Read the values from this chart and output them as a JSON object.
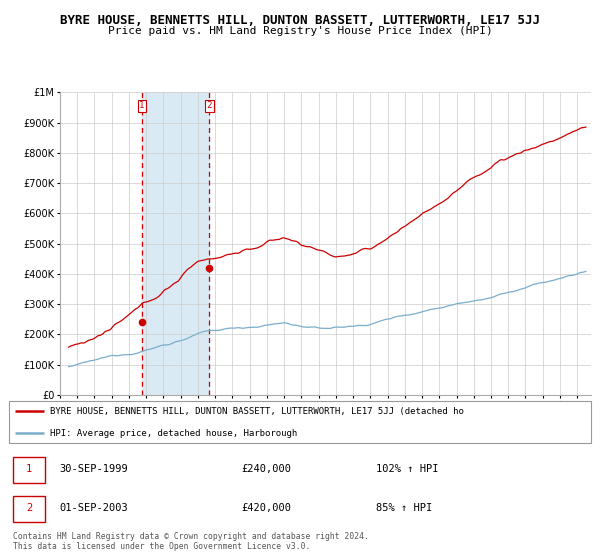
{
  "title": "BYRE HOUSE, BENNETTS HILL, DUNTON BASSETT, LUTTERWORTH, LE17 5JJ",
  "subtitle": "Price paid vs. HM Land Registry's House Price Index (HPI)",
  "hpi_label": "HPI: Average price, detached house, Harborough",
  "property_label": "BYRE HOUSE, BENNETTS HILL, DUNTON BASSETT, LUTTERWORTH, LE17 5JJ (detached ho",
  "sale1_date": "30-SEP-1999",
  "sale1_price": 240000,
  "sale1_hpi": "102%",
  "sale2_date": "01-SEP-2003",
  "sale2_price": 420000,
  "sale2_hpi": "85%",
  "red_color": "#cc0000",
  "blue_color": "#7aadcc",
  "shading_color": "#daeaf5",
  "grid_color": "#cccccc",
  "background_color": "#ffffff",
  "title_fontsize": 9.0,
  "subtitle_fontsize": 8.0,
  "ylim": [
    0,
    1000000
  ],
  "xlim_start": 1995.2,
  "xlim_end": 2025.8,
  "sale1_year": 1999.75,
  "sale2_year": 2003.67,
  "yticks": [
    0,
    100000,
    200000,
    300000,
    400000,
    500000,
    600000,
    700000,
    800000,
    900000,
    1000000
  ],
  "footer_text": "Contains HM Land Registry data © Crown copyright and database right 2024.\nThis data is licensed under the Open Government Licence v3.0."
}
